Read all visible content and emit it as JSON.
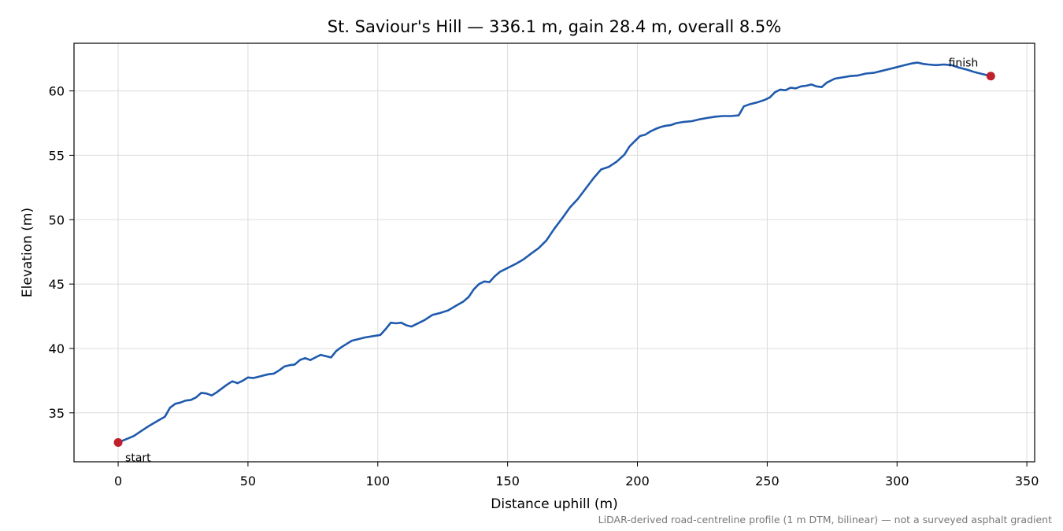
{
  "chart_data": {
    "type": "line",
    "title": "St. Saviour's Hill — 336.1 m, gain 28.4 m, overall 8.5%",
    "xlabel": "Distance uphill (m)",
    "ylabel": "Elevation (m)",
    "xlim": [
      -17,
      353
    ],
    "ylim": [
      31.2,
      63.7
    ],
    "xticks": [
      0,
      50,
      100,
      150,
      200,
      250,
      300,
      350
    ],
    "yticks": [
      35,
      40,
      45,
      50,
      55,
      60
    ],
    "grid": true,
    "series": [
      {
        "color": "#1f5aad",
        "x": [
          0,
          3,
          6,
          9,
          12,
          15,
          18,
          20,
          22,
          24,
          26,
          28,
          30,
          32,
          34,
          36,
          38,
          40,
          42,
          44,
          46,
          48,
          50,
          52,
          54,
          56,
          58,
          60,
          62,
          64,
          66,
          68,
          70,
          72,
          74,
          76,
          78,
          80,
          82,
          84,
          86,
          88,
          90,
          92,
          95,
          98,
          101,
          103,
          105,
          107,
          109,
          111,
          113,
          115,
          118,
          121,
          124,
          127,
          130,
          133,
          135,
          137,
          139,
          141,
          143,
          145,
          147,
          149,
          151,
          153,
          156,
          159,
          162,
          165,
          168,
          171,
          174,
          177,
          180,
          183,
          186,
          189,
          192,
          195,
          197,
          199,
          201,
          203,
          205,
          207,
          209,
          211,
          213,
          215,
          218,
          221,
          224,
          227,
          230,
          233,
          236,
          239,
          241,
          243,
          246,
          249,
          251,
          253,
          255,
          257,
          259,
          261,
          263,
          265,
          267,
          269,
          271,
          273,
          276,
          279,
          282,
          285,
          288,
          291,
          294,
          297,
          300,
          303,
          306,
          308,
          310,
          312,
          315,
          318,
          321,
          324,
          327,
          330,
          333,
          336.1
        ],
        "y": [
          32.7,
          32.95,
          33.2,
          33.6,
          34.0,
          34.35,
          34.7,
          35.4,
          35.7,
          35.8,
          35.95,
          36.0,
          36.2,
          36.55,
          36.5,
          36.35,
          36.6,
          36.9,
          37.2,
          37.45,
          37.3,
          37.5,
          37.75,
          37.7,
          37.8,
          37.9,
          38.0,
          38.05,
          38.3,
          38.6,
          38.7,
          38.75,
          39.1,
          39.25,
          39.1,
          39.3,
          39.5,
          39.4,
          39.3,
          39.8,
          40.1,
          40.35,
          40.6,
          40.7,
          40.85,
          40.95,
          41.05,
          41.5,
          42.0,
          41.95,
          42.0,
          41.8,
          41.7,
          41.9,
          42.2,
          42.6,
          42.75,
          42.95,
          43.3,
          43.65,
          44.0,
          44.6,
          45.0,
          45.2,
          45.15,
          45.6,
          45.95,
          46.15,
          46.35,
          46.55,
          46.9,
          47.35,
          47.8,
          48.4,
          49.3,
          50.1,
          50.95,
          51.6,
          52.4,
          53.2,
          53.9,
          54.1,
          54.5,
          55.05,
          55.7,
          56.1,
          56.5,
          56.6,
          56.85,
          57.05,
          57.2,
          57.3,
          57.35,
          57.5,
          57.6,
          57.65,
          57.8,
          57.9,
          58.0,
          58.05,
          58.05,
          58.1,
          58.8,
          58.95,
          59.1,
          59.3,
          59.5,
          59.9,
          60.1,
          60.05,
          60.25,
          60.2,
          60.35,
          60.4,
          60.5,
          60.35,
          60.3,
          60.65,
          60.95,
          61.05,
          61.15,
          61.2,
          61.35,
          61.4,
          61.55,
          61.7,
          61.85,
          62.0,
          62.15,
          62.2,
          62.1,
          62.05,
          62.0,
          62.05,
          62.0,
          61.8,
          61.65,
          61.45,
          61.3,
          61.15
        ]
      }
    ],
    "annotations": [
      {
        "text": "start",
        "x": 0,
        "y": 32.7,
        "color": "#c0202c"
      },
      {
        "text": "finish",
        "x": 336.1,
        "y": 61.15,
        "color": "#c0202c"
      }
    ],
    "footnote": "LiDAR-derived road-centreline profile (1 m DTM, bilinear) — not a surveyed asphalt gradient"
  }
}
